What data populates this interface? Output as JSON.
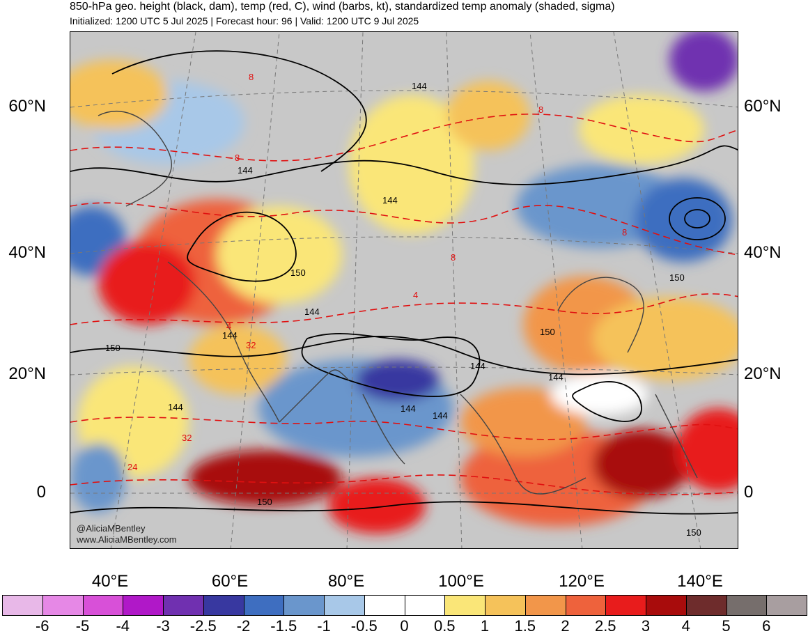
{
  "header": {
    "title": "850-hPa geo. height (black, dam), temp (red, C), wind (barbs, kt), standardized temp anomaly (shaded, sigma)",
    "subtitle": "Initialized: 1200 UTC 5 Jul 2025 | Forecast hour: 96 | Valid: 1200 UTC 9 Jul 2025"
  },
  "map": {
    "lat_labels": [
      "60°N",
      "40°N",
      "20°N",
      "0"
    ],
    "lon_labels": [
      "40°E",
      "60°E",
      "80°E",
      "100°E",
      "120°E",
      "140°E"
    ],
    "height_contour_labels": [
      "144",
      "144",
      "144",
      "144",
      "150",
      "150",
      "144",
      "144",
      "144",
      "144",
      "150",
      "144",
      "150",
      "144",
      "150",
      "150"
    ],
    "temp_contour_labels": [
      "8",
      "8",
      "8",
      "4",
      "32",
      "24",
      "32",
      "8",
      "4",
      "8"
    ],
    "watermark": [
      "@AliciaMBentley",
      "www.AliciaMBentley.com"
    ]
  },
  "colorbar": {
    "colors": [
      "#e8b8e8",
      "#e688e6",
      "#d850d8",
      "#b018c8",
      "#7030b0",
      "#3838a0",
      "#3e6ec0",
      "#6a96cc",
      "#a8c8e8",
      "#ffffff",
      "#ffffff",
      "#fae678",
      "#f5c25a",
      "#f2964a",
      "#ee623c",
      "#e81c1c",
      "#a80c0c",
      "#6e2c2c",
      "#766e6c",
      "#a89ea0"
    ],
    "labels": [
      "-6",
      "-5",
      "-4",
      "-3",
      "-2.5",
      "-2",
      "-1.5",
      "-1",
      "-0.5",
      "0",
      "0.5",
      "1",
      "1.5",
      "2",
      "2.5",
      "3",
      "4",
      "5",
      "6"
    ]
  }
}
